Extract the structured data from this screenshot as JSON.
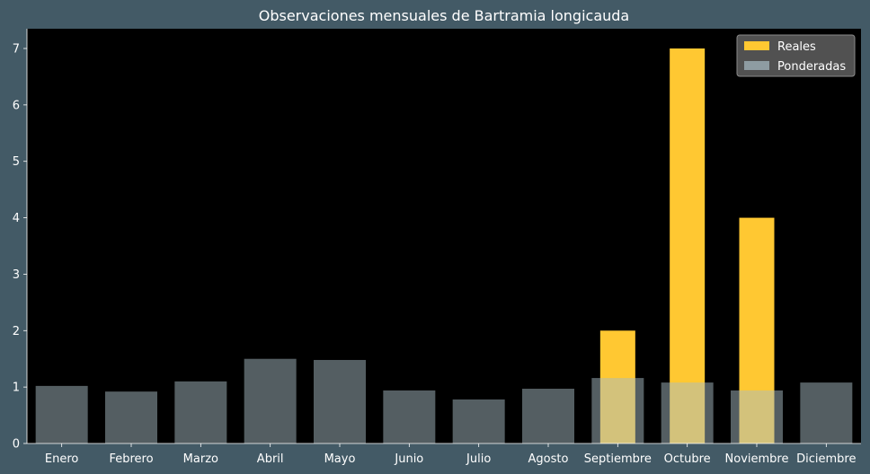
{
  "chart_data": {
    "type": "bar",
    "title": "Observaciones mensuales de Bartramia longicauda",
    "xlabel": "",
    "ylabel": "",
    "categories": [
      "Enero",
      "Febrero",
      "Marzo",
      "Abril",
      "Mayo",
      "Junio",
      "Julio",
      "Agosto",
      "Septiembre",
      "Octubre",
      "Noviembre",
      "Diciembre"
    ],
    "series": [
      {
        "name": "Reales",
        "values": [
          0,
          0,
          0,
          0,
          0,
          0,
          0,
          0,
          2,
          7,
          4,
          0
        ],
        "color": "#ffc832"
      },
      {
        "name": "Ponderadas",
        "values": [
          1.02,
          0.92,
          1.1,
          1.5,
          1.48,
          0.94,
          0.78,
          0.97,
          1.16,
          1.08,
          0.94,
          1.08
        ],
        "color": "#a8bcc4"
      }
    ],
    "ylim": [
      0,
      7.35
    ],
    "yticks": [
      0,
      1,
      2,
      3,
      4,
      5,
      6,
      7
    ],
    "grid": false,
    "legend_position": "top-right",
    "colors": {
      "figure_background": "#435a66",
      "plot_background": "#000000",
      "text": "#ffffff"
    }
  }
}
